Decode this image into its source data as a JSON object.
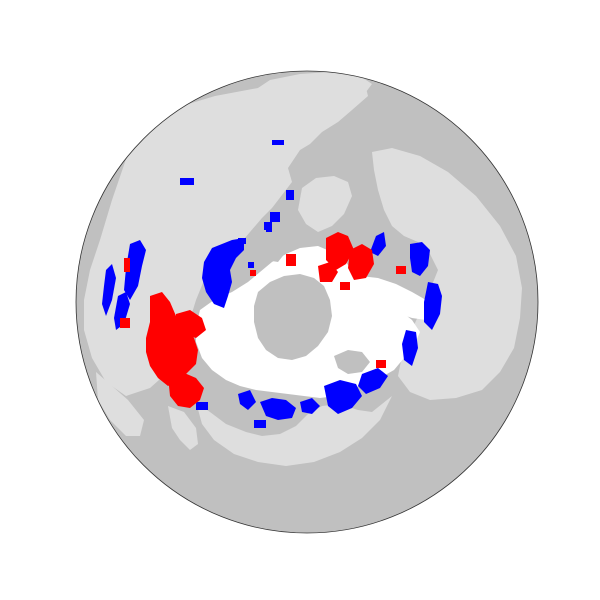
{
  "map": {
    "projection": "orthographic",
    "center": "north-pole",
    "colors": {
      "background": "#ffffff",
      "ocean": "#c0c0c0",
      "land": "#dedede",
      "globe_outline": "#333333",
      "snow_ice": "#ffffff",
      "category_blue": "#0000ff",
      "category_red": "#ff0000"
    },
    "layers": [
      {
        "id": "ocean",
        "kind": "fill",
        "color_key": "ocean"
      },
      {
        "id": "land",
        "kind": "fill",
        "color_key": "land"
      },
      {
        "id": "snow-ice",
        "kind": "fill",
        "color_key": "snow_ice"
      },
      {
        "id": "anomaly-blue",
        "kind": "fill",
        "color_key": "category_blue"
      },
      {
        "id": "anomaly-red",
        "kind": "fill",
        "color_key": "category_red"
      }
    ]
  }
}
